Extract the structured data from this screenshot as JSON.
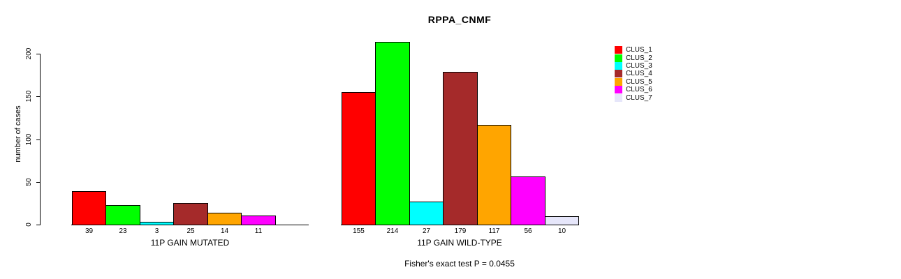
{
  "title": "RPPA_CNMF",
  "y_axis": {
    "label": "number of cases",
    "ticks": [
      0,
      50,
      100,
      150,
      200
    ]
  },
  "groups": [
    {
      "label": "11P GAIN MUTATED",
      "values": [
        39,
        23,
        3,
        25,
        14,
        11,
        0
      ]
    },
    {
      "label": "11P GAIN WILD-TYPE",
      "values": [
        155,
        214,
        27,
        179,
        117,
        56,
        10
      ]
    }
  ],
  "legend": [
    {
      "label": "CLUS_1",
      "color": "#FF0000"
    },
    {
      "label": "CLUS_2",
      "color": "#00FF00"
    },
    {
      "label": "CLUS_3",
      "color": "#00FFFF"
    },
    {
      "label": "CLUS_4",
      "color": "#A52A2A"
    },
    {
      "label": "CLUS_5",
      "color": "#FFA500"
    },
    {
      "label": "CLUS_6",
      "color": "#FF00FF"
    },
    {
      "label": "CLUS_7",
      "color": "#E6E6FA"
    }
  ],
  "footer": "Fisher's exact test P = 0.0455",
  "chart_data": {
    "type": "bar",
    "title": "RPPA_CNMF",
    "ylabel": "number of cases",
    "xlabel_groups": [
      "11P GAIN MUTATED",
      "11P GAIN WILD-TYPE"
    ],
    "categories": [
      "CLUS_1",
      "CLUS_2",
      "CLUS_3",
      "CLUS_4",
      "CLUS_5",
      "CLUS_6",
      "CLUS_7"
    ],
    "series": [
      {
        "name": "11P GAIN MUTATED",
        "values": [
          39,
          23,
          3,
          25,
          14,
          11,
          0
        ]
      },
      {
        "name": "11P GAIN WILD-TYPE",
        "values": [
          155,
          214,
          27,
          179,
          117,
          56,
          10
        ]
      }
    ],
    "colors": [
      "#FF0000",
      "#00FF00",
      "#00FFFF",
      "#A52A2A",
      "#FFA500",
      "#FF00FF",
      "#E6E6FA"
    ],
    "yticks": [
      0,
      50,
      100,
      150,
      200
    ],
    "ylim": [
      0,
      214
    ],
    "grid": false,
    "bar_labels_shown": true,
    "legend_position": "right",
    "annotation": "Fisher's exact test P = 0.0455"
  }
}
